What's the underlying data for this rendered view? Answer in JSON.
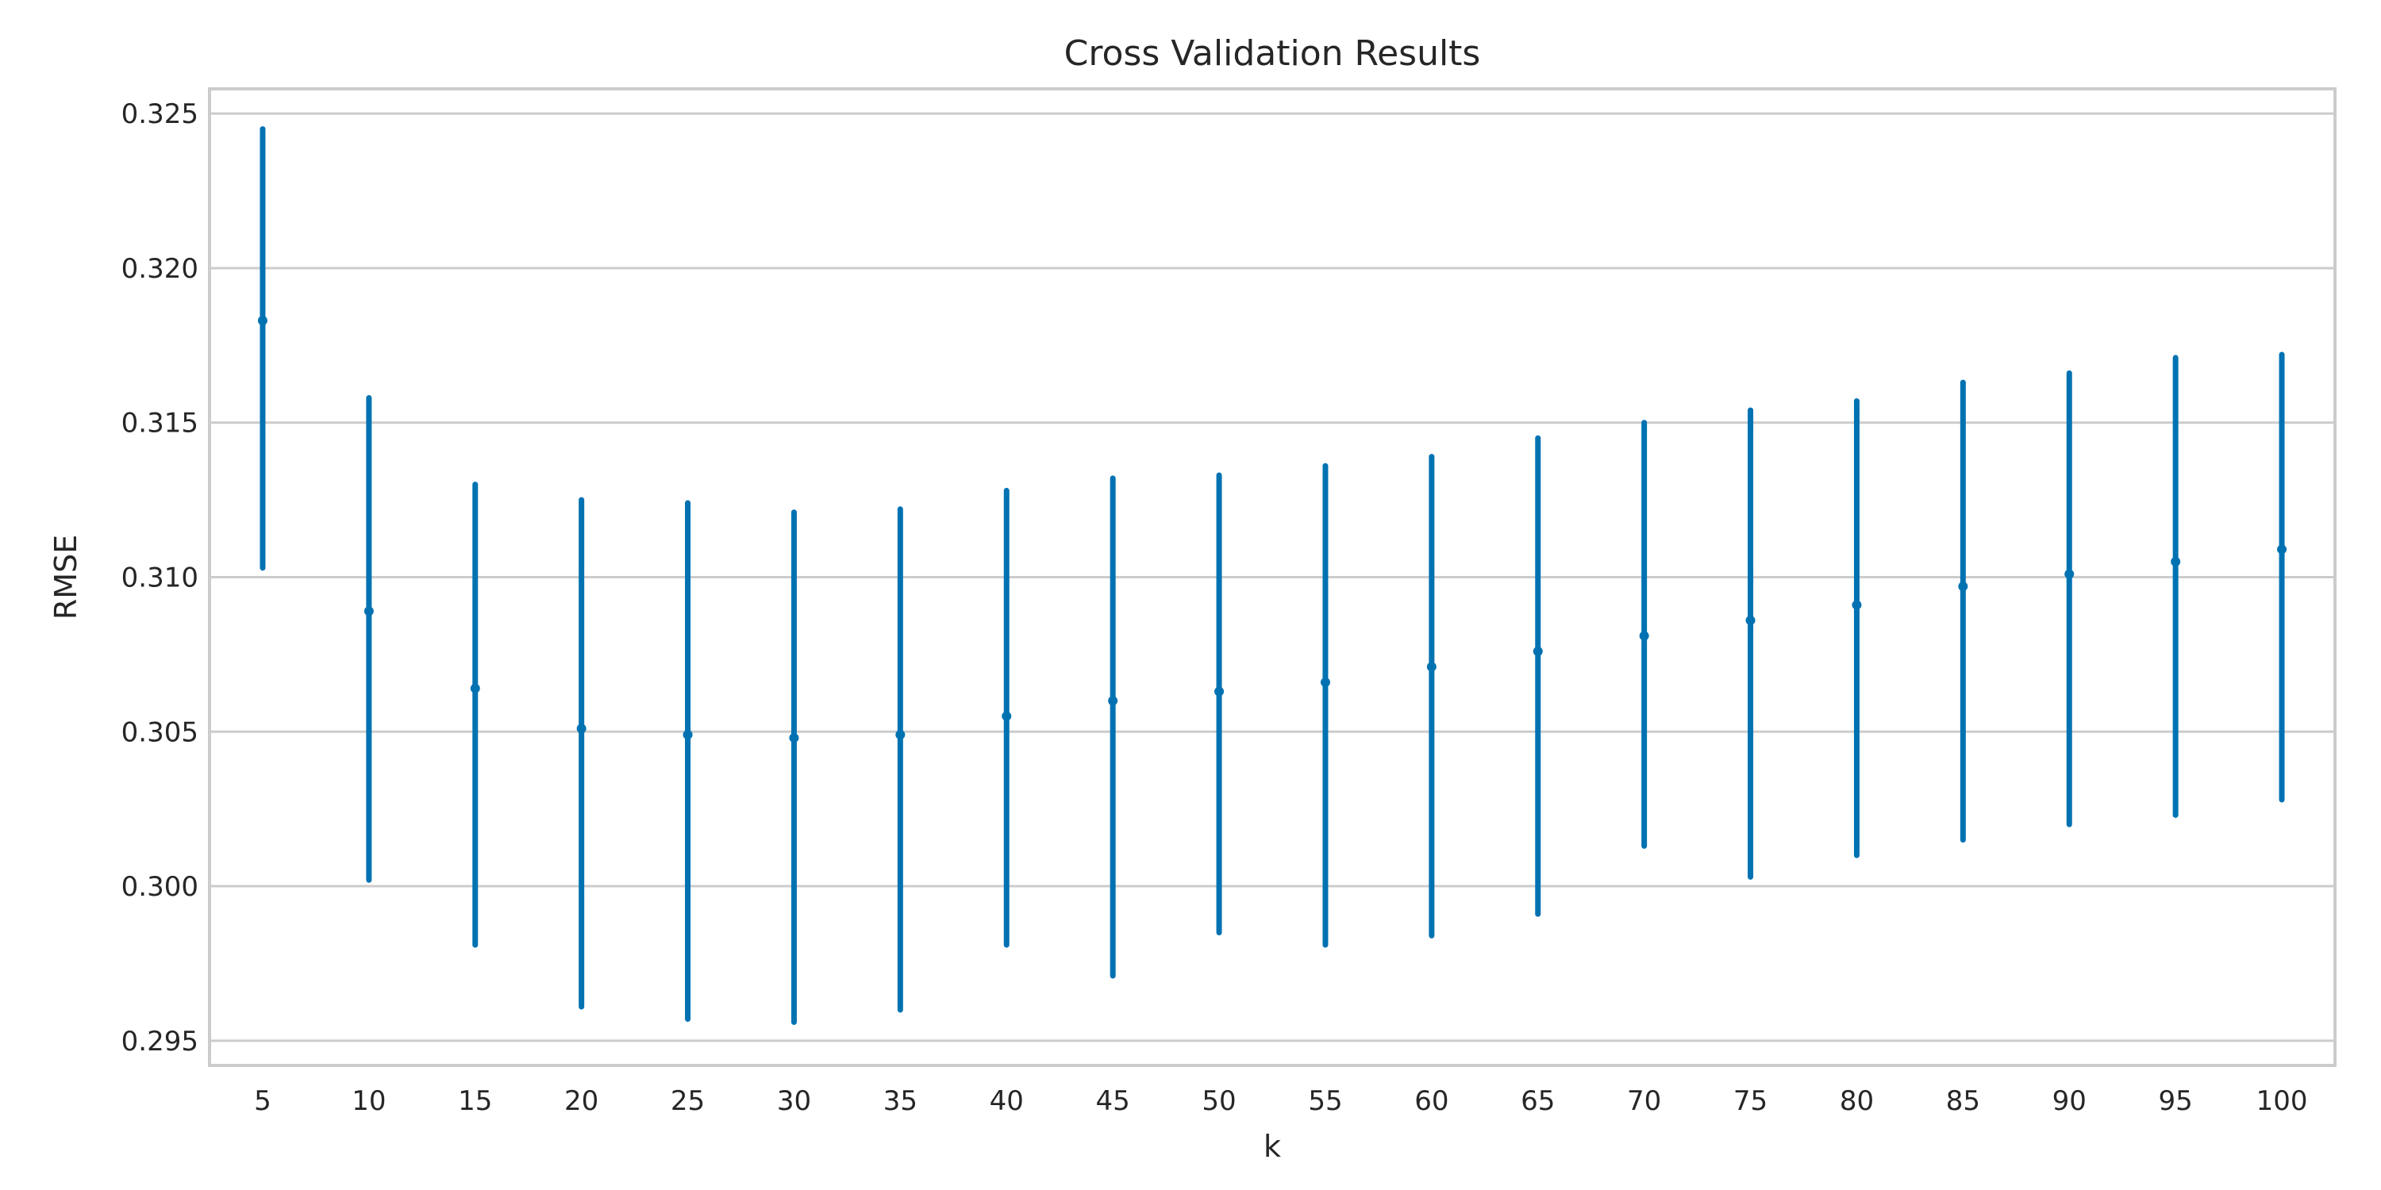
{
  "chart_data": {
    "type": "scatter",
    "title": "Cross Validation Results",
    "xlabel": "k",
    "ylabel": "RMSE",
    "ylim": [
      0.2942,
      0.3258
    ],
    "yticks": [
      0.295,
      0.3,
      0.305,
      0.31,
      0.315,
      0.32,
      0.325
    ],
    "ytick_labels": [
      "0.295",
      "0.300",
      "0.305",
      "0.310",
      "0.315",
      "0.320",
      "0.325"
    ],
    "grid": true,
    "color": "#0072B2",
    "series": [
      {
        "x": [
          5,
          10,
          15,
          20,
          25,
          30,
          35,
          40,
          45,
          50,
          55,
          60,
          65,
          70,
          75,
          80,
          85,
          90,
          95,
          100
        ],
        "mean": [
          0.3183,
          0.3089,
          0.3064,
          0.3051,
          0.3049,
          0.3048,
          0.3049,
          0.3055,
          0.306,
          0.3063,
          0.3066,
          0.3071,
          0.3076,
          0.3081,
          0.3086,
          0.3091,
          0.3097,
          0.3101,
          0.3105,
          0.3109
        ],
        "lower": [
          0.3103,
          0.3002,
          0.2981,
          0.2961,
          0.2957,
          0.2956,
          0.296,
          0.2981,
          0.2971,
          0.2985,
          0.2981,
          0.2984,
          0.2991,
          0.3013,
          0.3003,
          0.301,
          0.3015,
          0.302,
          0.3023,
          0.3028
        ],
        "upper": [
          0.3245,
          0.3158,
          0.313,
          0.3125,
          0.3124,
          0.3121,
          0.3122,
          0.3128,
          0.3132,
          0.3133,
          0.3136,
          0.3139,
          0.3145,
          0.315,
          0.3154,
          0.3157,
          0.3163,
          0.3166,
          0.3171,
          0.3172
        ]
      }
    ]
  }
}
